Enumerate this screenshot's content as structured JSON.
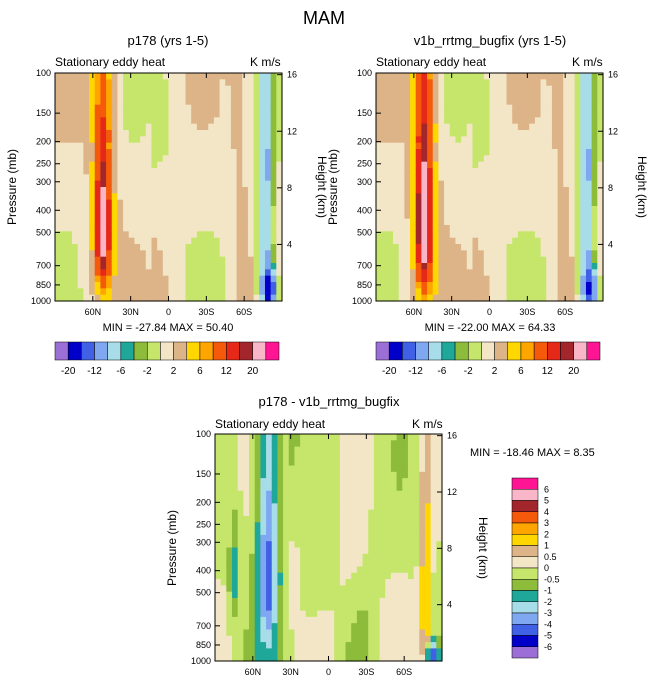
{
  "figure_title": "MAM",
  "colors": {
    "diverging": [
      "#9b6fd6",
      "#0000c8",
      "#4060e6",
      "#7fa8f0",
      "#a7dde8",
      "#1fa89a",
      "#8dbb3a",
      "#c5e66b",
      "#f3e6c6",
      "#ddb488",
      "#ffd700",
      "#ffa500",
      "#f55a0a",
      "#e62819",
      "#a3262d",
      "#f8b6c8",
      "#ff1493"
    ],
    "diff": [
      "#9b6fd6",
      "#0000c8",
      "#4060e6",
      "#7fa8f0",
      "#a7dde8",
      "#1fa89a",
      "#8dbb3a",
      "#c5e66b",
      "#f3e6c6",
      "#ddb488",
      "#ffd700",
      "#ffa500",
      "#f55a0a",
      "#a3262d",
      "#f8b6c8",
      "#ff1493"
    ]
  },
  "chart_data": [
    {
      "type": "heatmap",
      "panel": "p178",
      "title": "p178 (yrs 1-5)",
      "left_string": "Stationary eddy heat",
      "right_string": "K m/s",
      "xlabel": "",
      "ylabel": "Pressure (mb)",
      "ylabel_right": "Height (km)",
      "xlim": [
        90,
        -90
      ],
      "ylim": [
        1000,
        100
      ],
      "x_ticks": [
        60,
        30,
        0,
        -30,
        -60
      ],
      "x_tick_labels": [
        "60N",
        "30N",
        "0",
        "30S",
        "60S"
      ],
      "y_ticks": [
        100,
        150,
        200,
        250,
        300,
        400,
        500,
        700,
        850,
        1000
      ],
      "y_tick_labels": [
        "100",
        "150",
        "200",
        "250",
        "300",
        "400",
        "500",
        "700",
        "850",
        "1000"
      ],
      "y_right_ticks": [
        4,
        8,
        12,
        16
      ],
      "y_right_tick_labels": [
        "4",
        "8",
        "12",
        "16"
      ],
      "min_max_text": "MIN = -27.84   MAX =  50.40",
      "min": -27.84,
      "max": 50.4,
      "features": [
        {
          "lat": 52,
          "p": 470,
          "value": 18,
          "lat_width": 5,
          "p_width": 300
        },
        {
          "lat": 52,
          "p": 450,
          "value": 6,
          "lat_width": 10,
          "p_width": 600
        },
        {
          "lat": -77,
          "p": 420,
          "value": -10,
          "lat_width": 6,
          "p_width": 600
        },
        {
          "lat": -80,
          "p": 900,
          "value": -18,
          "lat_width": 6,
          "p_width": 200
        }
      ]
    },
    {
      "type": "heatmap",
      "panel": "v1b_rrtmg_bugfix",
      "title": "v1b_rrtmg_bugfix (yrs 1-5)",
      "left_string": "Stationary eddy heat",
      "right_string": "K m/s",
      "xlabel": "",
      "ylabel": "Pressure (mb)",
      "ylabel_right": "Height (km)",
      "xlim": [
        90,
        -90
      ],
      "ylim": [
        1000,
        100
      ],
      "x_ticks": [
        60,
        30,
        0,
        -30,
        -60
      ],
      "x_tick_labels": [
        "60N",
        "30N",
        "0",
        "30S",
        "60S"
      ],
      "y_ticks": [
        100,
        150,
        200,
        250,
        300,
        400,
        500,
        700,
        850,
        1000
      ],
      "y_tick_labels": [
        "100",
        "150",
        "200",
        "250",
        "300",
        "400",
        "500",
        "700",
        "850",
        "1000"
      ],
      "y_right_ticks": [
        4,
        8,
        12,
        16
      ],
      "y_right_tick_labels": [
        "4",
        "8",
        "12",
        "16"
      ],
      "min_max_text": "MIN = -22.00   MAX =  64.33",
      "min": -22.0,
      "max": 64.33,
      "features": [
        {
          "lat": 52,
          "p": 450,
          "value": 20,
          "lat_width": 5,
          "p_width": 300
        },
        {
          "lat": 52,
          "p": 450,
          "value": 8,
          "lat_width": 10,
          "p_width": 650
        },
        {
          "lat": -77,
          "p": 420,
          "value": -10,
          "lat_width": 6,
          "p_width": 600
        },
        {
          "lat": -80,
          "p": 900,
          "value": -16,
          "lat_width": 6,
          "p_width": 200
        }
      ]
    },
    {
      "type": "heatmap",
      "panel": "diff",
      "title": "p178 - v1b_rrtmg_bugfix",
      "left_string": "Stationary eddy heat",
      "right_string": "K m/s",
      "xlabel": "",
      "ylabel": "Pressure (mb)",
      "ylabel_right": "Height (km)",
      "xlim": [
        90,
        -90
      ],
      "ylim": [
        1000,
        100
      ],
      "x_ticks": [
        60,
        30,
        0,
        -30,
        -60
      ],
      "x_tick_labels": [
        "60N",
        "30N",
        "0",
        "30S",
        "60S"
      ],
      "y_ticks": [
        100,
        150,
        200,
        250,
        300,
        400,
        500,
        700,
        850,
        1000
      ],
      "y_tick_labels": [
        "100",
        "150",
        "200",
        "250",
        "300",
        "400",
        "500",
        "700",
        "850",
        "1000"
      ],
      "y_right_ticks": [
        4,
        8,
        12,
        16
      ],
      "y_right_tick_labels": [
        "4",
        "8",
        "12",
        "16"
      ],
      "min_max_text": "MIN = -18.46   MAX =    8.35",
      "min": -18.46,
      "max": 8.35,
      "features": [
        {
          "lat": 48,
          "p": 420,
          "value": -3,
          "lat_width": 6,
          "p_width": 350
        },
        {
          "lat": 48,
          "p": 420,
          "value": -1.5,
          "lat_width": 11,
          "p_width": 700
        },
        {
          "lat": 75,
          "p": 420,
          "value": -1.2,
          "lat_width": 4,
          "p_width": 200
        },
        {
          "lat": -77,
          "p": 550,
          "value": 2,
          "lat_width": 4,
          "p_width": 500
        },
        {
          "lat": -82,
          "p": 950,
          "value": -5,
          "lat_width": 4,
          "p_width": 120
        }
      ]
    }
  ],
  "colorbars": [
    {
      "panel": "p178",
      "orientation": "horizontal",
      "levels": [
        -20,
        -16,
        -12,
        -8,
        -6,
        -4,
        -2,
        0,
        2,
        4,
        6,
        8,
        12,
        16,
        20
      ],
      "labels": [
        "-20",
        "-12",
        "-6",
        "-2",
        "2",
        "6",
        "12",
        "20"
      ]
    },
    {
      "panel": "v1b_rrtmg_bugfix",
      "orientation": "horizontal",
      "levels": [
        -20,
        -16,
        -12,
        -8,
        -6,
        -4,
        -2,
        0,
        2,
        4,
        6,
        8,
        12,
        16,
        20
      ],
      "labels": [
        "-20",
        "-12",
        "-6",
        "-2",
        "2",
        "6",
        "12",
        "20"
      ]
    },
    {
      "panel": "diff",
      "orientation": "vertical",
      "levels": [
        6,
        5,
        4,
        3,
        2,
        1,
        0.5,
        0,
        -0.5,
        -1,
        -2,
        -3,
        -4,
        -5,
        -6
      ],
      "labels": [
        "6",
        "5",
        "4",
        "3",
        "2",
        "1",
        "0.5",
        "0",
        "-0.5",
        "-1",
        "-2",
        "-3",
        "-4",
        "-5",
        "-6"
      ]
    }
  ]
}
